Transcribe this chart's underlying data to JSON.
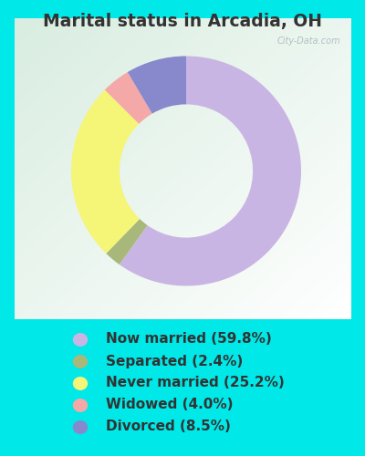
{
  "title": "Marital status in Arcadia, OH",
  "slices": [
    59.8,
    2.4,
    25.2,
    4.0,
    8.5
  ],
  "labels": [
    "Now married (59.8%)",
    "Separated (2.4%)",
    "Never married (25.2%)",
    "Widowed (4.0%)",
    "Divorced (8.5%)"
  ],
  "colors": [
    "#c9b5e3",
    "#a8b87a",
    "#f5f577",
    "#f5a8a8",
    "#8888cc"
  ],
  "bg_outer": "#00e8e8",
  "bg_chart_tl": "#d8ede0",
  "bg_chart_br": "#f0f8f0",
  "title_fontsize": 13.5,
  "legend_fontsize": 11,
  "donut_width": 0.42,
  "startangle": 90,
  "watermark": "City-Data.com",
  "text_color": "#333333"
}
